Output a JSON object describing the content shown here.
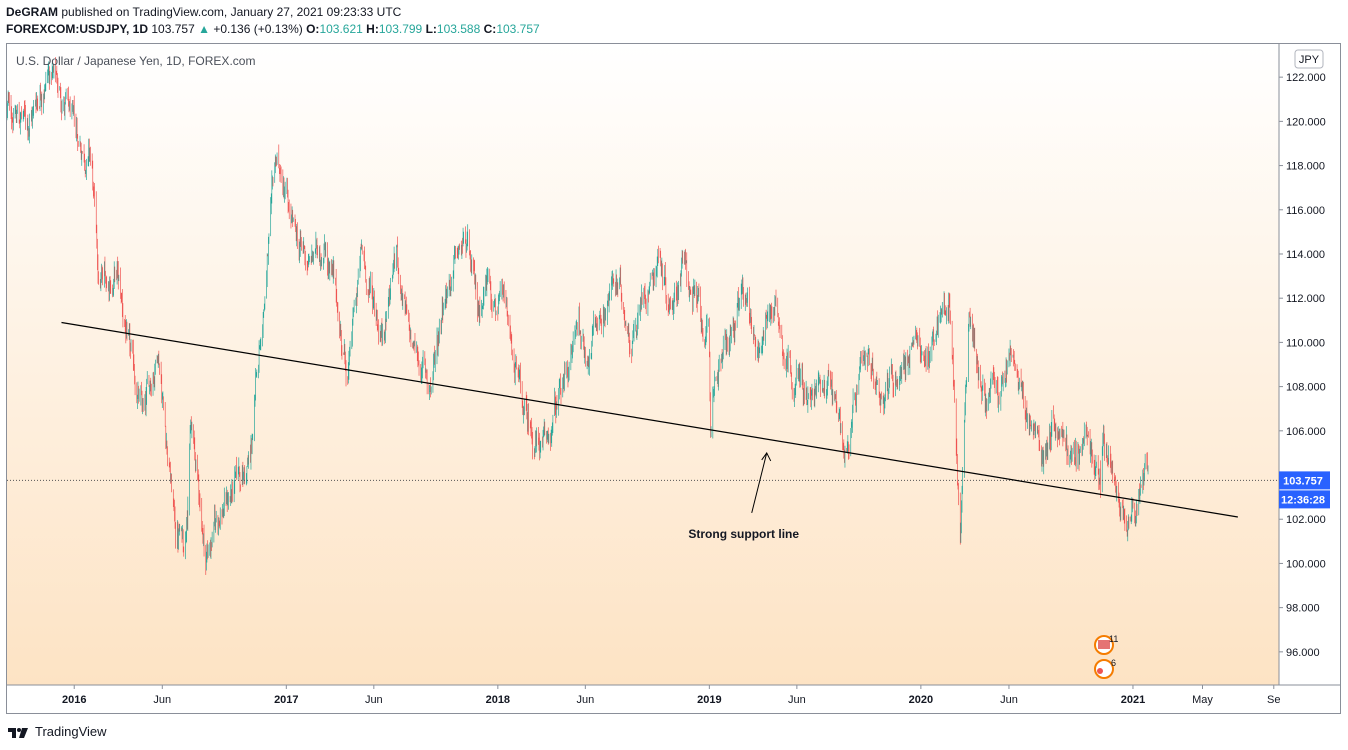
{
  "header": {
    "publisher": "DeGRAM",
    "published_text": " published on TradingView.com, January 27, 2021 09:23:33 UTC",
    "symbol": "FOREXCOM:USDJPY, 1D",
    "last": "103.757",
    "change": "+0.136 (+0.13%)",
    "o_label": "O:",
    "o_value": "103.621",
    "h_label": "H:",
    "h_value": "103.799",
    "l_label": "L:",
    "l_value": "103.588",
    "c_label": "C:",
    "c_value": "103.757"
  },
  "footer": {
    "brand": "TradingView"
  },
  "colors": {
    "up": "#26a69a",
    "down": "#ef5350",
    "price_label_bg": "#2962ff",
    "support_line": "#000000",
    "bg_top": "#ffffff",
    "bg_bottom": "#fde3c4"
  },
  "chart_data": {
    "type": "candlestick",
    "title": "U.S. Dollar / Japanese Yen, 1D, FOREX.com",
    "currency_label": "JPY",
    "current_price": "103.757",
    "countdown": "12:36:28",
    "y_ticks": [
      "122.000",
      "120.000",
      "118.000",
      "116.000",
      "114.000",
      "112.000",
      "110.000",
      "108.000",
      "106.000",
      "104.000",
      "102.000",
      "100.000",
      "98.000",
      "96.000"
    ],
    "ylim": [
      94.5,
      123.5
    ],
    "x_ticks": [
      "2016",
      "Jun",
      "2017",
      "Jun",
      "2018",
      "Jun",
      "2019",
      "Jun",
      "2020",
      "Jun",
      "2021",
      "May",
      "Se"
    ],
    "xlim": [
      "2015-09-07",
      "2021-09-10"
    ],
    "price_path": [
      [
        "2015-09-07",
        120.5
      ],
      [
        "2015-10-15",
        120.0
      ],
      [
        "2015-11-15",
        122.5
      ],
      [
        "2015-12-15",
        121.0
      ],
      [
        "2016-01-05",
        119.0
      ],
      [
        "2016-01-30",
        118.5
      ],
      [
        "2016-02-12",
        112.5
      ],
      [
        "2016-03-15",
        113.0
      ],
      [
        "2016-04-10",
        108.5
      ],
      [
        "2016-05-01",
        106.5
      ],
      [
        "2016-05-25",
        110.0
      ],
      [
        "2016-06-24",
        101.5
      ],
      [
        "2016-07-10",
        101.0
      ],
      [
        "2016-07-20",
        106.5
      ],
      [
        "2016-08-15",
        100.3
      ],
      [
        "2016-09-10",
        102.5
      ],
      [
        "2016-10-05",
        103.5
      ],
      [
        "2016-10-31",
        104.5
      ],
      [
        "2016-11-15",
        109.5
      ],
      [
        "2016-12-15",
        118.2
      ],
      [
        "2017-01-15",
        114.5
      ],
      [
        "2017-02-10",
        113.5
      ],
      [
        "2017-03-10",
        114.7
      ],
      [
        "2017-04-17",
        108.5
      ],
      [
        "2017-05-10",
        113.8
      ],
      [
        "2017-06-15",
        110.5
      ],
      [
        "2017-07-10",
        114.2
      ],
      [
        "2017-08-01",
        110.0
      ],
      [
        "2017-09-08",
        108.0
      ],
      [
        "2017-09-30",
        112.5
      ],
      [
        "2017-11-06",
        114.5
      ],
      [
        "2017-11-27",
        111.2
      ],
      [
        "2017-12-15",
        113.2
      ],
      [
        "2018-01-15",
        111.0
      ],
      [
        "2018-02-15",
        106.5
      ],
      [
        "2018-03-23",
        105.0
      ],
      [
        "2018-04-20",
        107.5
      ],
      [
        "2018-05-21",
        111.0
      ],
      [
        "2018-06-01",
        109.5
      ],
      [
        "2018-07-19",
        112.8
      ],
      [
        "2018-08-20",
        110.5
      ],
      [
        "2018-10-04",
        114.2
      ],
      [
        "2018-10-26",
        111.8
      ],
      [
        "2018-11-15",
        113.8
      ],
      [
        "2018-12-31",
        109.8
      ],
      [
        "2019-01-03",
        105.5
      ],
      [
        "2019-01-10",
        108.5
      ],
      [
        "2019-03-05",
        112.0
      ],
      [
        "2019-03-25",
        110.0
      ],
      [
        "2019-04-24",
        112.0
      ],
      [
        "2019-05-15",
        109.5
      ],
      [
        "2019-06-25",
        107.2
      ],
      [
        "2019-07-25",
        108.8
      ],
      [
        "2019-08-26",
        105.2
      ],
      [
        "2019-09-20",
        108.2
      ],
      [
        "2019-10-31",
        108.0
      ],
      [
        "2019-12-15",
        109.6
      ],
      [
        "2020-01-10",
        109.4
      ],
      [
        "2020-02-20",
        112.0
      ],
      [
        "2020-03-09",
        101.5
      ],
      [
        "2020-03-24",
        111.5
      ],
      [
        "2020-04-20",
        107.5
      ],
      [
        "2020-05-20",
        107.6
      ],
      [
        "2020-06-05",
        109.5
      ],
      [
        "2020-06-25",
        107.0
      ],
      [
        "2020-07-31",
        104.8
      ],
      [
        "2020-08-15",
        106.8
      ],
      [
        "2020-09-21",
        104.4
      ],
      [
        "2020-10-10",
        106.0
      ],
      [
        "2020-11-06",
        103.3
      ],
      [
        "2020-11-11",
        105.5
      ],
      [
        "2020-12-17",
        102.9
      ],
      [
        "2021-01-06",
        102.8
      ],
      [
        "2021-01-15",
        104.1
      ],
      [
        "2021-01-27",
        103.757
      ]
    ],
    "support_line": {
      "start": [
        "2015-12-10",
        110.9
      ],
      "end": [
        "2021-07-01",
        102.1
      ]
    },
    "annotation": {
      "text": "Strong support line",
      "arrow_to": [
        "2019-04-10",
        105.0
      ]
    },
    "grid": false
  }
}
